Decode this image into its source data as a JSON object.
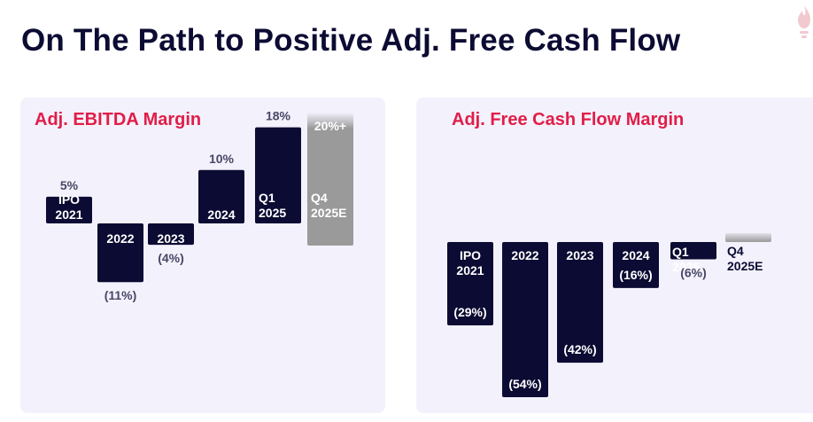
{
  "page": {
    "title": "On The Path to Positive Adj. Free Cash Flow"
  },
  "colors": {
    "title": "#0b0b33",
    "accent": "#e11d48",
    "bar_actual": "#0b0b33",
    "bar_target": "#9a9a9a",
    "value_label": "#474767",
    "panel_bg": "#f3f1fb"
  },
  "chart_data": [
    {
      "type": "bar",
      "title": "Adj. EBITDA Margin",
      "categories": [
        [
          "IPO",
          "2021"
        ],
        [
          "2022"
        ],
        [
          "2023"
        ],
        [
          "2024"
        ],
        [
          "Q1",
          "2025"
        ],
        [
          "Q4",
          "2025E"
        ]
      ],
      "values": [
        5,
        -11,
        -4,
        10,
        18,
        20
      ],
      "value_labels": [
        "5%",
        "(11%)",
        "(4%)",
        "10%",
        "18%",
        "20%+"
      ],
      "target_flags": [
        false,
        false,
        false,
        false,
        false,
        true
      ],
      "ylim": [
        -11,
        20
      ]
    },
    {
      "type": "bar",
      "title": "Adj. Free Cash Flow Margin",
      "categories": [
        [
          "IPO",
          "2021"
        ],
        [
          "2022"
        ],
        [
          "2023"
        ],
        [
          "2024"
        ],
        [
          "Q1",
          "2025"
        ],
        [
          "Q4",
          "2025E"
        ]
      ],
      "values": [
        -29,
        -54,
        -42,
        -16,
        -6,
        0
      ],
      "value_labels": [
        "(29%)",
        "(54%)",
        "(42%)",
        "(16%)",
        "(6%)",
        ""
      ],
      "target_flags": [
        false,
        false,
        false,
        false,
        false,
        true
      ],
      "ylim": [
        -54,
        0
      ]
    }
  ]
}
